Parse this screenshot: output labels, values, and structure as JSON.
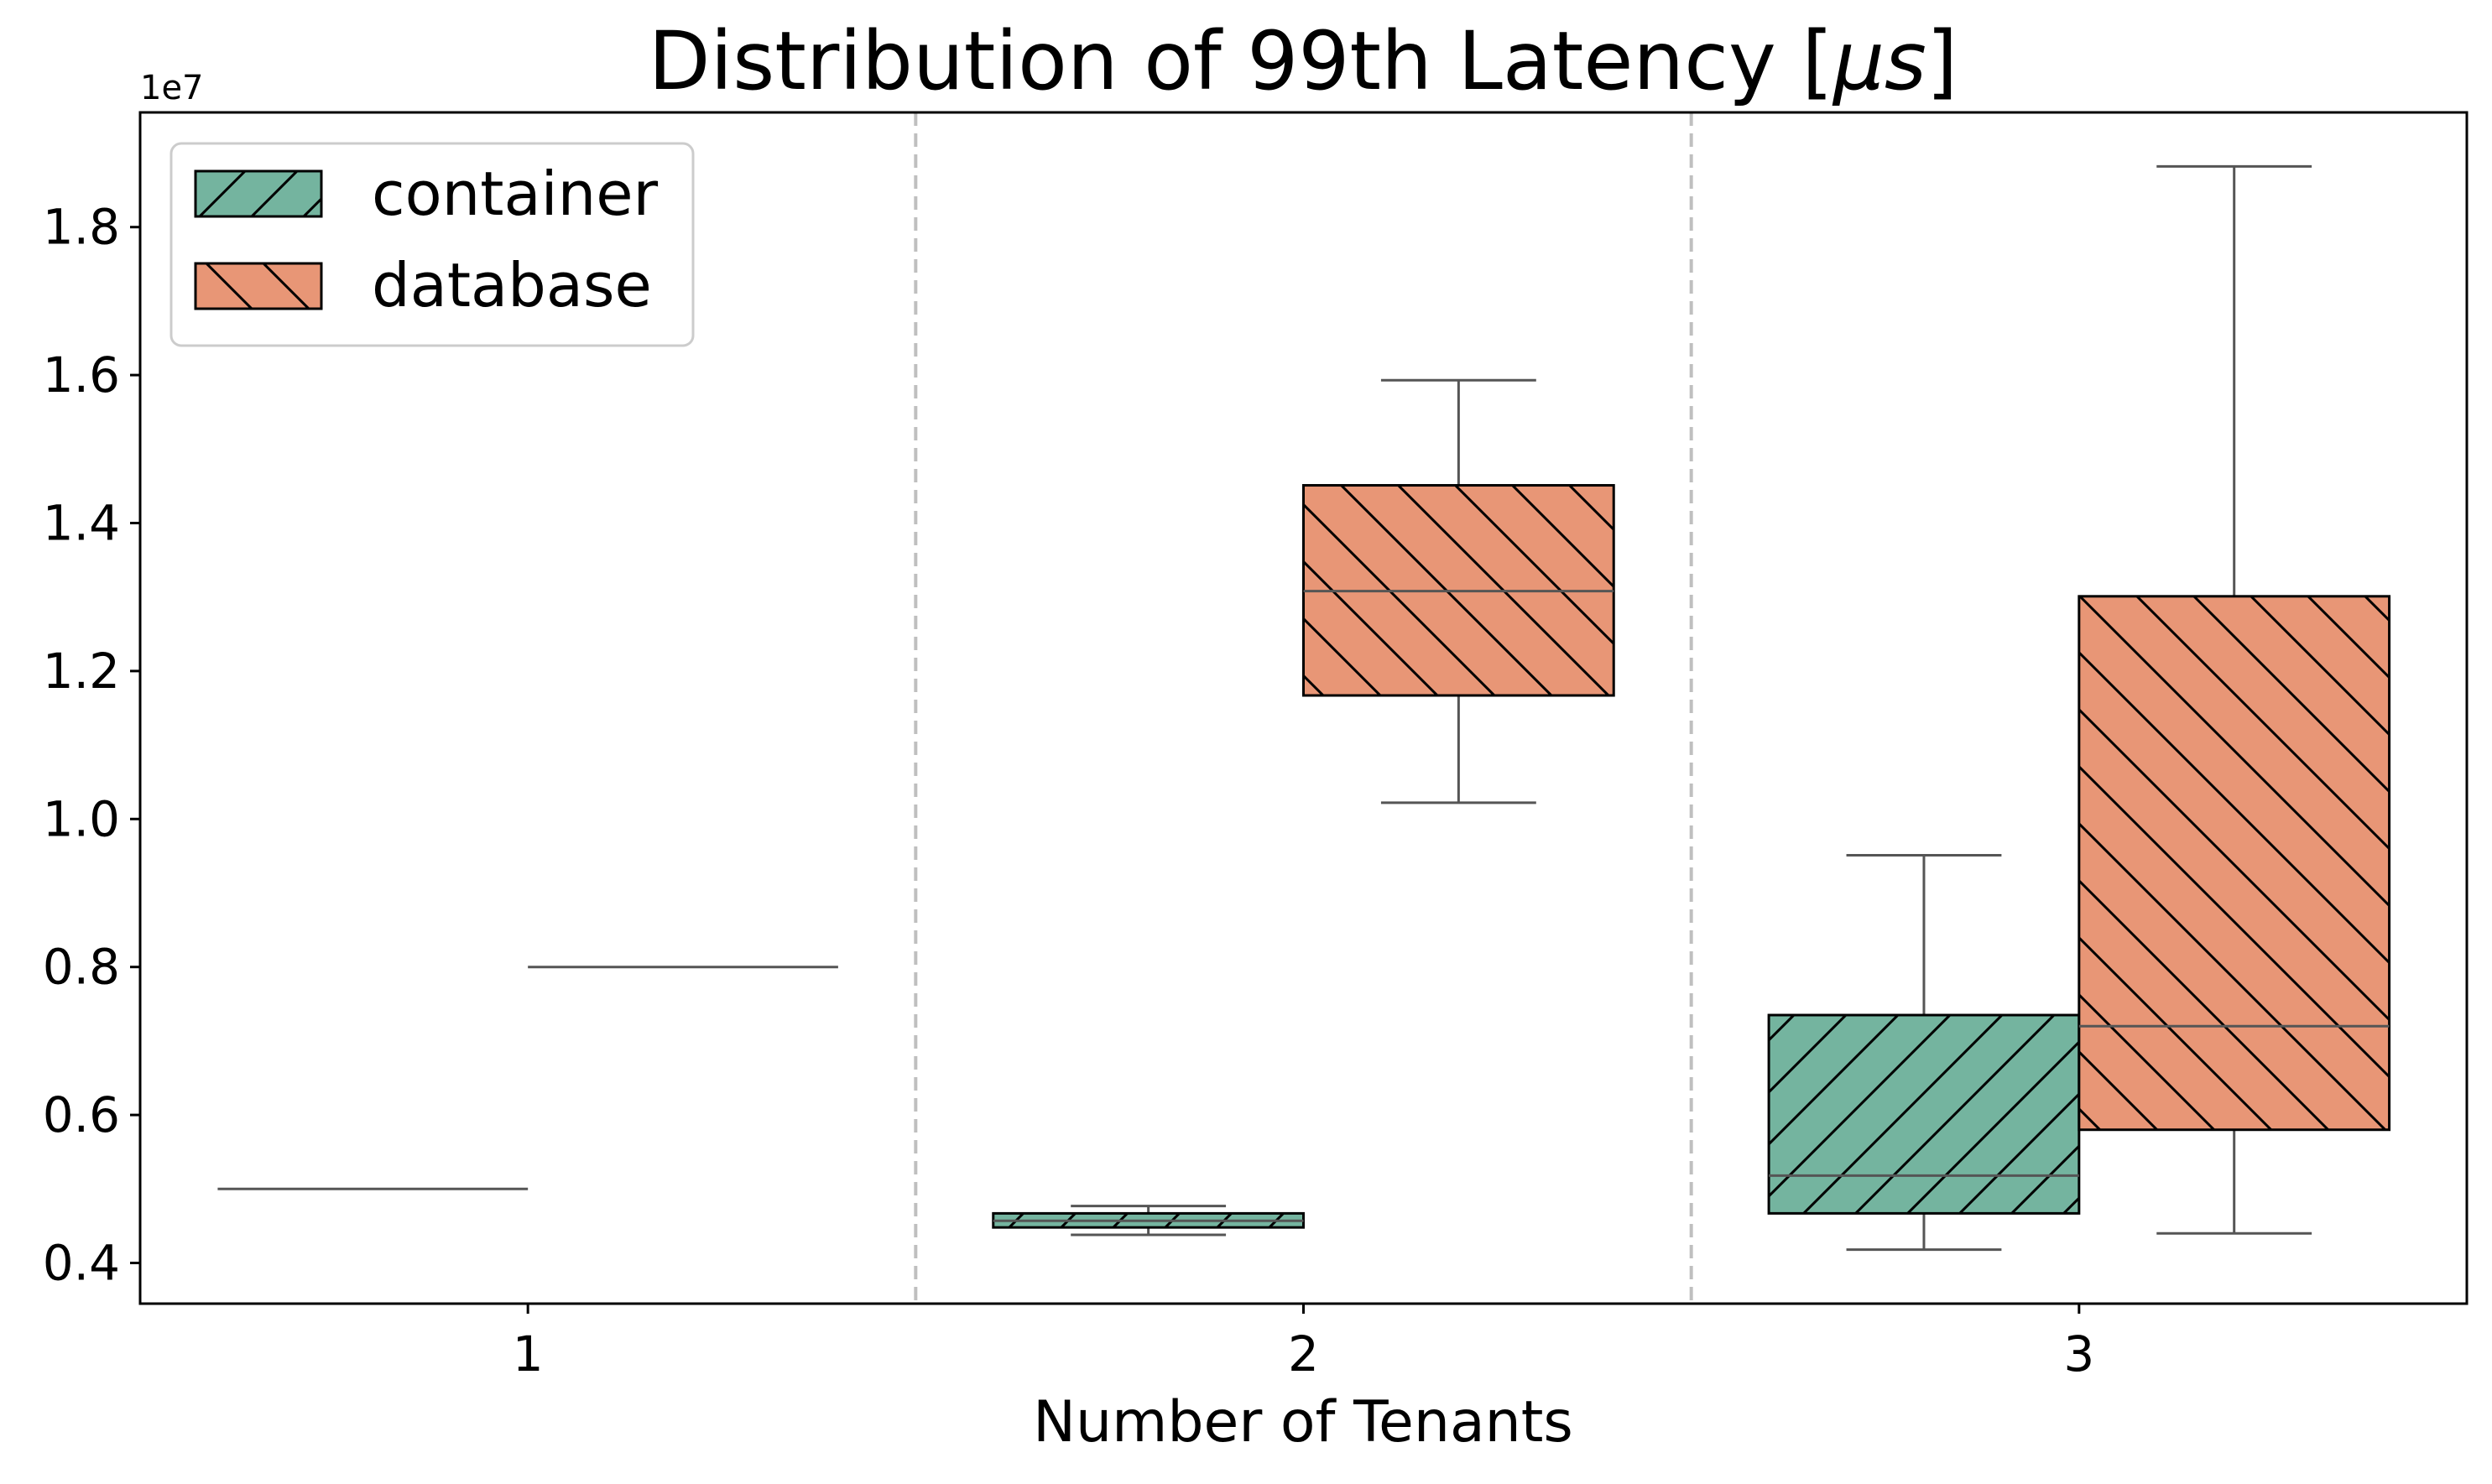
{
  "chart_data": {
    "type": "box",
    "title_main": "Distribution of 99th Latency [",
    "title_mu": "μ",
    "title_s": "s",
    "title_end": "]",
    "xlabel": "Number of Tenants",
    "y_offset_label": "1e7",
    "categories": [
      "1",
      "2",
      "3"
    ],
    "ylim": [
      0.345,
      1.955
    ],
    "yticks": [
      0.4,
      0.6,
      0.8,
      1.0,
      1.2,
      1.4,
      1.6,
      1.8
    ],
    "ytick_labels": [
      "0.4",
      "0.6",
      "0.8",
      "1.0",
      "1.2",
      "1.4",
      "1.6",
      "1.8"
    ],
    "separators": [
      1.5,
      2.5
    ],
    "legend_position": "upper-left",
    "series": [
      {
        "name": "container",
        "color": "#74b49f",
        "hatch": "/",
        "boxes": [
          {
            "category": "1",
            "whislo": 0.5,
            "q1": 0.5,
            "med": 0.5,
            "q3": 0.5,
            "whishi": 0.5
          },
          {
            "category": "2",
            "whislo": 0.438,
            "q1": 0.448,
            "med": 0.457,
            "q3": 0.467,
            "whishi": 0.477
          },
          {
            "category": "3",
            "whislo": 0.418,
            "q1": 0.467,
            "med": 0.518,
            "q3": 0.735,
            "whishi": 0.951
          }
        ]
      },
      {
        "name": "database",
        "color": "#e89676",
        "hatch": "\\",
        "boxes": [
          {
            "category": "1",
            "whislo": 0.8,
            "q1": 0.8,
            "med": 0.8,
            "q3": 0.8,
            "whishi": 0.8
          },
          {
            "category": "2",
            "whislo": 1.022,
            "q1": 1.167,
            "med": 1.308,
            "q3": 1.451,
            "whishi": 1.593
          },
          {
            "category": "3",
            "whislo": 0.44,
            "q1": 0.58,
            "med": 0.72,
            "q3": 1.301,
            "whishi": 1.882
          }
        ]
      }
    ]
  }
}
